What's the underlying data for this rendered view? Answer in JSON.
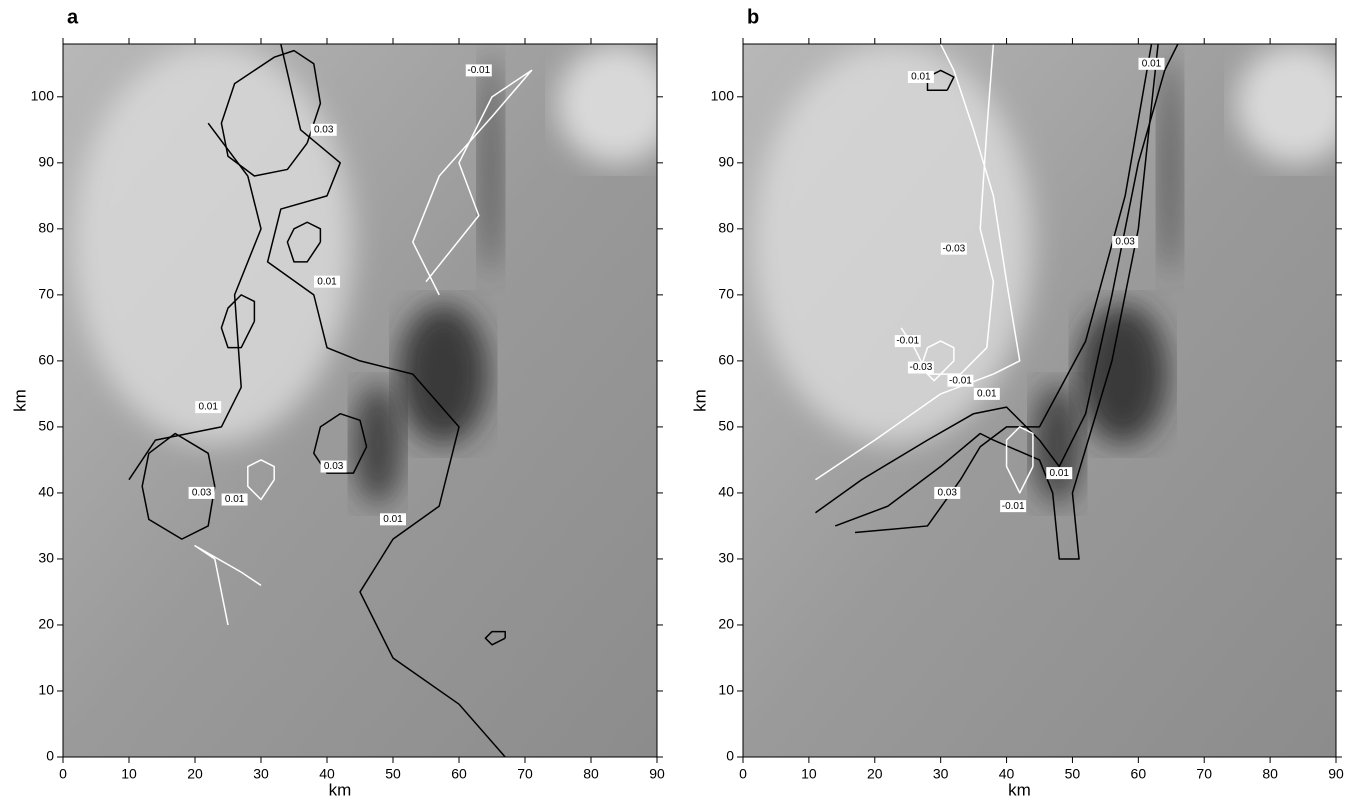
{
  "chart_data": [
    {
      "type": "contour",
      "panel": "a",
      "xlabel": "km",
      "ylabel": "km",
      "xlim": [
        0,
        90
      ],
      "ylim": [
        0,
        108
      ],
      "xticks": [
        0,
        10,
        20,
        30,
        40,
        50,
        60,
        70,
        80,
        90
      ],
      "yticks": [
        0,
        10,
        20,
        30,
        40,
        50,
        60,
        70,
        80,
        90,
        100
      ],
      "contours": [
        {
          "color": "#000",
          "x": [
            33,
            36,
            42,
            40,
            33,
            31,
            38,
            40,
            45,
            53,
            60,
            57,
            50,
            45,
            50,
            60,
            67
          ],
          "y": [
            108,
            95,
            90,
            85,
            83,
            75,
            70,
            62,
            60,
            58,
            50,
            38,
            33,
            25,
            15,
            8,
            0
          ]
        },
        {
          "color": "#000",
          "x": [
            10,
            14,
            24,
            27,
            26,
            30,
            28,
            22
          ],
          "y": [
            42,
            48,
            50,
            56,
            70,
            80,
            88,
            96
          ]
        },
        {
          "color": "#000",
          "x": [
            37,
            39,
            38,
            35,
            32,
            26,
            24,
            25,
            29,
            34,
            37
          ],
          "y": [
            93,
            99,
            105,
            107,
            106,
            102,
            96,
            91,
            88,
            89,
            93
          ]
        },
        {
          "color": "#000",
          "x": [
            46,
            45,
            42,
            39,
            38,
            40,
            44,
            46
          ],
          "y": [
            47,
            51,
            52,
            50,
            46,
            43,
            43,
            47
          ]
        },
        {
          "color": "#000",
          "x": [
            39,
            39,
            37,
            35,
            34,
            35,
            37,
            39
          ],
          "y": [
            78,
            80,
            81,
            80,
            78,
            75,
            75,
            78
          ]
        },
        {
          "color": "#000",
          "x": [
            29,
            29,
            27,
            25,
            24,
            25,
            27,
            29
          ],
          "y": [
            66,
            69,
            70,
            68,
            65,
            62,
            62,
            66
          ]
        },
        {
          "color": "#000",
          "x": [
            23,
            22,
            17,
            13,
            12,
            13,
            18,
            22,
            23
          ],
          "y": [
            41,
            46,
            49,
            46,
            41,
            36,
            33,
            35,
            41
          ]
        },
        {
          "color": "#000",
          "x": [
            67,
            67,
            65,
            64,
            65,
            67
          ],
          "y": [
            18,
            19,
            19,
            18,
            17,
            18
          ]
        },
        {
          "color": "#fff",
          "x": [
            57,
            53,
            57,
            65,
            71,
            65,
            60,
            63,
            55
          ],
          "y": [
            70,
            78,
            88,
            97,
            104,
            100,
            90,
            82,
            72
          ]
        },
        {
          "color": "#fff",
          "x": [
            32,
            32,
            30,
            28,
            28,
            30,
            32
          ],
          "y": [
            42,
            44,
            45,
            44,
            41,
            39,
            42
          ]
        },
        {
          "color": "#fff",
          "x": [
            25,
            23,
            20,
            27,
            30
          ],
          "y": [
            20,
            30,
            32,
            28,
            26
          ]
        }
      ],
      "contour_labels": [
        0.03,
        0.01,
        0.01,
        0.03,
        0.03,
        0.01,
        0.01,
        -0.01
      ]
    },
    {
      "type": "contour",
      "panel": "b",
      "xlabel": "km",
      "ylabel": "km",
      "xlim": [
        0,
        90
      ],
      "ylim": [
        0,
        108
      ],
      "xticks": [
        0,
        10,
        20,
        30,
        40,
        50,
        60,
        70,
        80,
        90
      ],
      "yticks": [
        0,
        10,
        20,
        30,
        40,
        50,
        60,
        70,
        80,
        90,
        100
      ],
      "contours": [
        {
          "color": "#000",
          "x": [
            11,
            18,
            28,
            35,
            40,
            45,
            48,
            52,
            56,
            60,
            64,
            66
          ],
          "y": [
            37,
            42,
            48,
            52,
            53,
            48,
            44,
            52,
            70,
            90,
            104,
            108
          ]
        },
        {
          "color": "#000",
          "x": [
            14,
            22,
            30,
            36,
            38,
            45,
            47,
            48,
            51,
            50,
            56,
            60,
            63
          ],
          "y": [
            35,
            38,
            44,
            49,
            48,
            45,
            40,
            30,
            30,
            40,
            60,
            80,
            108
          ]
        },
        {
          "color": "#000",
          "x": [
            17,
            28,
            33,
            36,
            40,
            45,
            52,
            58,
            62
          ],
          "y": [
            34,
            35,
            42,
            47,
            50,
            50,
            63,
            85,
            108
          ]
        },
        {
          "color": "#000",
          "x": [
            31,
            32,
            30,
            28,
            28,
            31
          ],
          "y": [
            101,
            103,
            104,
            103,
            101,
            101
          ]
        },
        {
          "color": "#fff",
          "x": [
            11,
            20,
            30,
            38,
            42,
            40,
            38,
            35,
            32,
            30
          ],
          "y": [
            42,
            48,
            55,
            58,
            60,
            72,
            85,
            95,
            104,
            108
          ]
        },
        {
          "color": "#fff",
          "x": [
            24,
            26,
            28,
            33,
            37,
            38,
            36,
            37,
            38
          ],
          "y": [
            65,
            62,
            58,
            58,
            62,
            72,
            80,
            95,
            108
          ]
        },
        {
          "color": "#fff",
          "x": [
            32,
            32,
            30,
            28,
            27,
            29,
            32
          ],
          "y": [
            60,
            62,
            63,
            62,
            59,
            57,
            60
          ]
        },
        {
          "color": "#fff",
          "x": [
            44,
            44,
            42,
            40,
            40,
            42,
            44
          ],
          "y": [
            44,
            49,
            50,
            48,
            44,
            40,
            44
          ]
        }
      ],
      "contour_labels": [
        0.01,
        0.01,
        -0.03,
        0.03,
        -0.01,
        -0.03,
        -0.01,
        0.01,
        0.03,
        -0.01,
        0.01
      ]
    }
  ]
}
